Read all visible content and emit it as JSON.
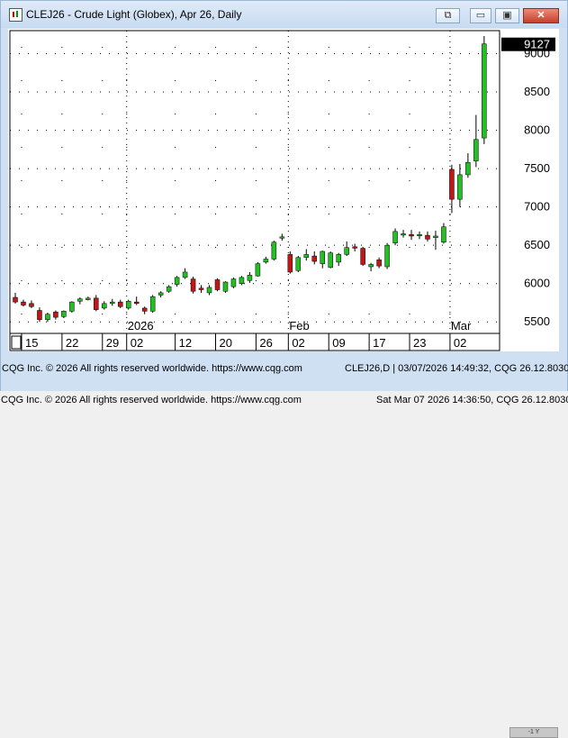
{
  "window": {
    "title": "CLEJ26 - Crude Light (Globex), Apr 26, Daily",
    "buttons": {
      "link": "⧉",
      "minimize": "▭",
      "restore": "▣",
      "close": "✕"
    }
  },
  "chart_data": {
    "type": "candlestick",
    "ylim": [
      5350,
      9300
    ],
    "yticks": [
      5500,
      6000,
      6500,
      7000,
      7500,
      8000,
      8500,
      9000
    ],
    "last_price": "9127",
    "up_color": "#22c022",
    "down_color": "#c01818",
    "date_labels": [
      {
        "label": "15",
        "index": 1
      },
      {
        "label": "22",
        "index": 6
      },
      {
        "label": "29",
        "index": 11
      },
      {
        "label": "02",
        "index": 14
      },
      {
        "label": "12",
        "index": 20
      },
      {
        "label": "20",
        "index": 25
      },
      {
        "label": "26",
        "index": 30
      },
      {
        "label": "02",
        "index": 34
      },
      {
        "label": "09",
        "index": 39
      },
      {
        "label": "17",
        "index": 44
      },
      {
        "label": "23",
        "index": 49
      },
      {
        "label": "02",
        "index": 54
      }
    ],
    "month_labels": [
      {
        "label": "2026",
        "index": 14
      },
      {
        "label": "Feb",
        "index": 34
      },
      {
        "label": "Mar",
        "index": 54
      }
    ],
    "candles": [
      {
        "o": 5820,
        "h": 5880,
        "l": 5740,
        "c": 5760
      },
      {
        "o": 5760,
        "h": 5790,
        "l": 5700,
        "c": 5720
      },
      {
        "o": 5740,
        "h": 5780,
        "l": 5680,
        "c": 5700
      },
      {
        "o": 5650,
        "h": 5690,
        "l": 5500,
        "c": 5530
      },
      {
        "o": 5530,
        "h": 5620,
        "l": 5500,
        "c": 5600
      },
      {
        "o": 5630,
        "h": 5650,
        "l": 5530,
        "c": 5560
      },
      {
        "o": 5570,
        "h": 5650,
        "l": 5550,
        "c": 5640
      },
      {
        "o": 5640,
        "h": 5770,
        "l": 5620,
        "c": 5760
      },
      {
        "o": 5770,
        "h": 5820,
        "l": 5730,
        "c": 5800
      },
      {
        "o": 5790,
        "h": 5830,
        "l": 5780,
        "c": 5810
      },
      {
        "o": 5810,
        "h": 5850,
        "l": 5640,
        "c": 5660
      },
      {
        "o": 5680,
        "h": 5770,
        "l": 5660,
        "c": 5740
      },
      {
        "o": 5740,
        "h": 5800,
        "l": 5710,
        "c": 5760
      },
      {
        "o": 5760,
        "h": 5790,
        "l": 5680,
        "c": 5700
      },
      {
        "o": 5680,
        "h": 5790,
        "l": 5660,
        "c": 5770
      },
      {
        "o": 5760,
        "h": 5830,
        "l": 5720,
        "c": 5740
      },
      {
        "o": 5680,
        "h": 5700,
        "l": 5600,
        "c": 5640
      },
      {
        "o": 5640,
        "h": 5850,
        "l": 5620,
        "c": 5830
      },
      {
        "o": 5850,
        "h": 5900,
        "l": 5820,
        "c": 5880
      },
      {
        "o": 5900,
        "h": 5980,
        "l": 5880,
        "c": 5960
      },
      {
        "o": 5990,
        "h": 6100,
        "l": 5960,
        "c": 6080
      },
      {
        "o": 6080,
        "h": 6200,
        "l": 6060,
        "c": 6150
      },
      {
        "o": 6060,
        "h": 6090,
        "l": 5870,
        "c": 5900
      },
      {
        "o": 5940,
        "h": 5980,
        "l": 5880,
        "c": 5920
      },
      {
        "o": 5880,
        "h": 5980,
        "l": 5850,
        "c": 5950
      },
      {
        "o": 6050,
        "h": 6070,
        "l": 5900,
        "c": 5920
      },
      {
        "o": 5900,
        "h": 6030,
        "l": 5880,
        "c": 6020
      },
      {
        "o": 5960,
        "h": 6080,
        "l": 5940,
        "c": 6060
      },
      {
        "o": 6000,
        "h": 6100,
        "l": 5980,
        "c": 6080
      },
      {
        "o": 6040,
        "h": 6150,
        "l": 6010,
        "c": 6110
      },
      {
        "o": 6100,
        "h": 6280,
        "l": 6090,
        "c": 6260
      },
      {
        "o": 6280,
        "h": 6350,
        "l": 6260,
        "c": 6320
      },
      {
        "o": 6320,
        "h": 6560,
        "l": 6300,
        "c": 6540
      },
      {
        "o": 6600,
        "h": 6650,
        "l": 6560,
        "c": 6610
      },
      {
        "o": 6380,
        "h": 6420,
        "l": 6130,
        "c": 6150
      },
      {
        "o": 6170,
        "h": 6360,
        "l": 6150,
        "c": 6340
      },
      {
        "o": 6340,
        "h": 6450,
        "l": 6300,
        "c": 6380
      },
      {
        "o": 6360,
        "h": 6420,
        "l": 6250,
        "c": 6290
      },
      {
        "o": 6260,
        "h": 6430,
        "l": 6200,
        "c": 6420
      },
      {
        "o": 6210,
        "h": 6420,
        "l": 6200,
        "c": 6400
      },
      {
        "o": 6280,
        "h": 6400,
        "l": 6230,
        "c": 6380
      },
      {
        "o": 6380,
        "h": 6550,
        "l": 6360,
        "c": 6470
      },
      {
        "o": 6480,
        "h": 6520,
        "l": 6420,
        "c": 6470
      },
      {
        "o": 6460,
        "h": 6480,
        "l": 6230,
        "c": 6250
      },
      {
        "o": 6220,
        "h": 6270,
        "l": 6160,
        "c": 6250
      },
      {
        "o": 6310,
        "h": 6340,
        "l": 6200,
        "c": 6230
      },
      {
        "o": 6220,
        "h": 6530,
        "l": 6190,
        "c": 6500
      },
      {
        "o": 6530,
        "h": 6720,
        "l": 6500,
        "c": 6680
      },
      {
        "o": 6650,
        "h": 6700,
        "l": 6600,
        "c": 6650
      },
      {
        "o": 6640,
        "h": 6700,
        "l": 6570,
        "c": 6620
      },
      {
        "o": 6630,
        "h": 6680,
        "l": 6580,
        "c": 6640
      },
      {
        "o": 6630,
        "h": 6680,
        "l": 6550,
        "c": 6580
      },
      {
        "o": 6600,
        "h": 6690,
        "l": 6440,
        "c": 6620
      },
      {
        "o": 6540,
        "h": 6790,
        "l": 6520,
        "c": 6740
      },
      {
        "o": 7490,
        "h": 7550,
        "l": 6920,
        "c": 7100
      },
      {
        "o": 7100,
        "h": 7560,
        "l": 7000,
        "c": 7420
      },
      {
        "o": 7420,
        "h": 7700,
        "l": 7380,
        "c": 7580
      },
      {
        "o": 7600,
        "h": 8200,
        "l": 7520,
        "c": 7880
      },
      {
        "o": 7900,
        "h": 9230,
        "l": 7820,
        "c": 9127
      }
    ]
  },
  "footer": {
    "copyright": "CQG Inc. © 2026 All rights reserved worldwide. https://www.cqg.com",
    "chart_info": "CLEJ26,D | 03/07/2026 14:49:32, CQG 26.12.8030",
    "scroll_label": "-1 Y",
    "copyright2": "CQG Inc. © 2026 All rights reserved worldwide. https://www.cqg.com",
    "status": "Sat Mar 07 2026 14:36:50, CQG 26.12.8030"
  }
}
